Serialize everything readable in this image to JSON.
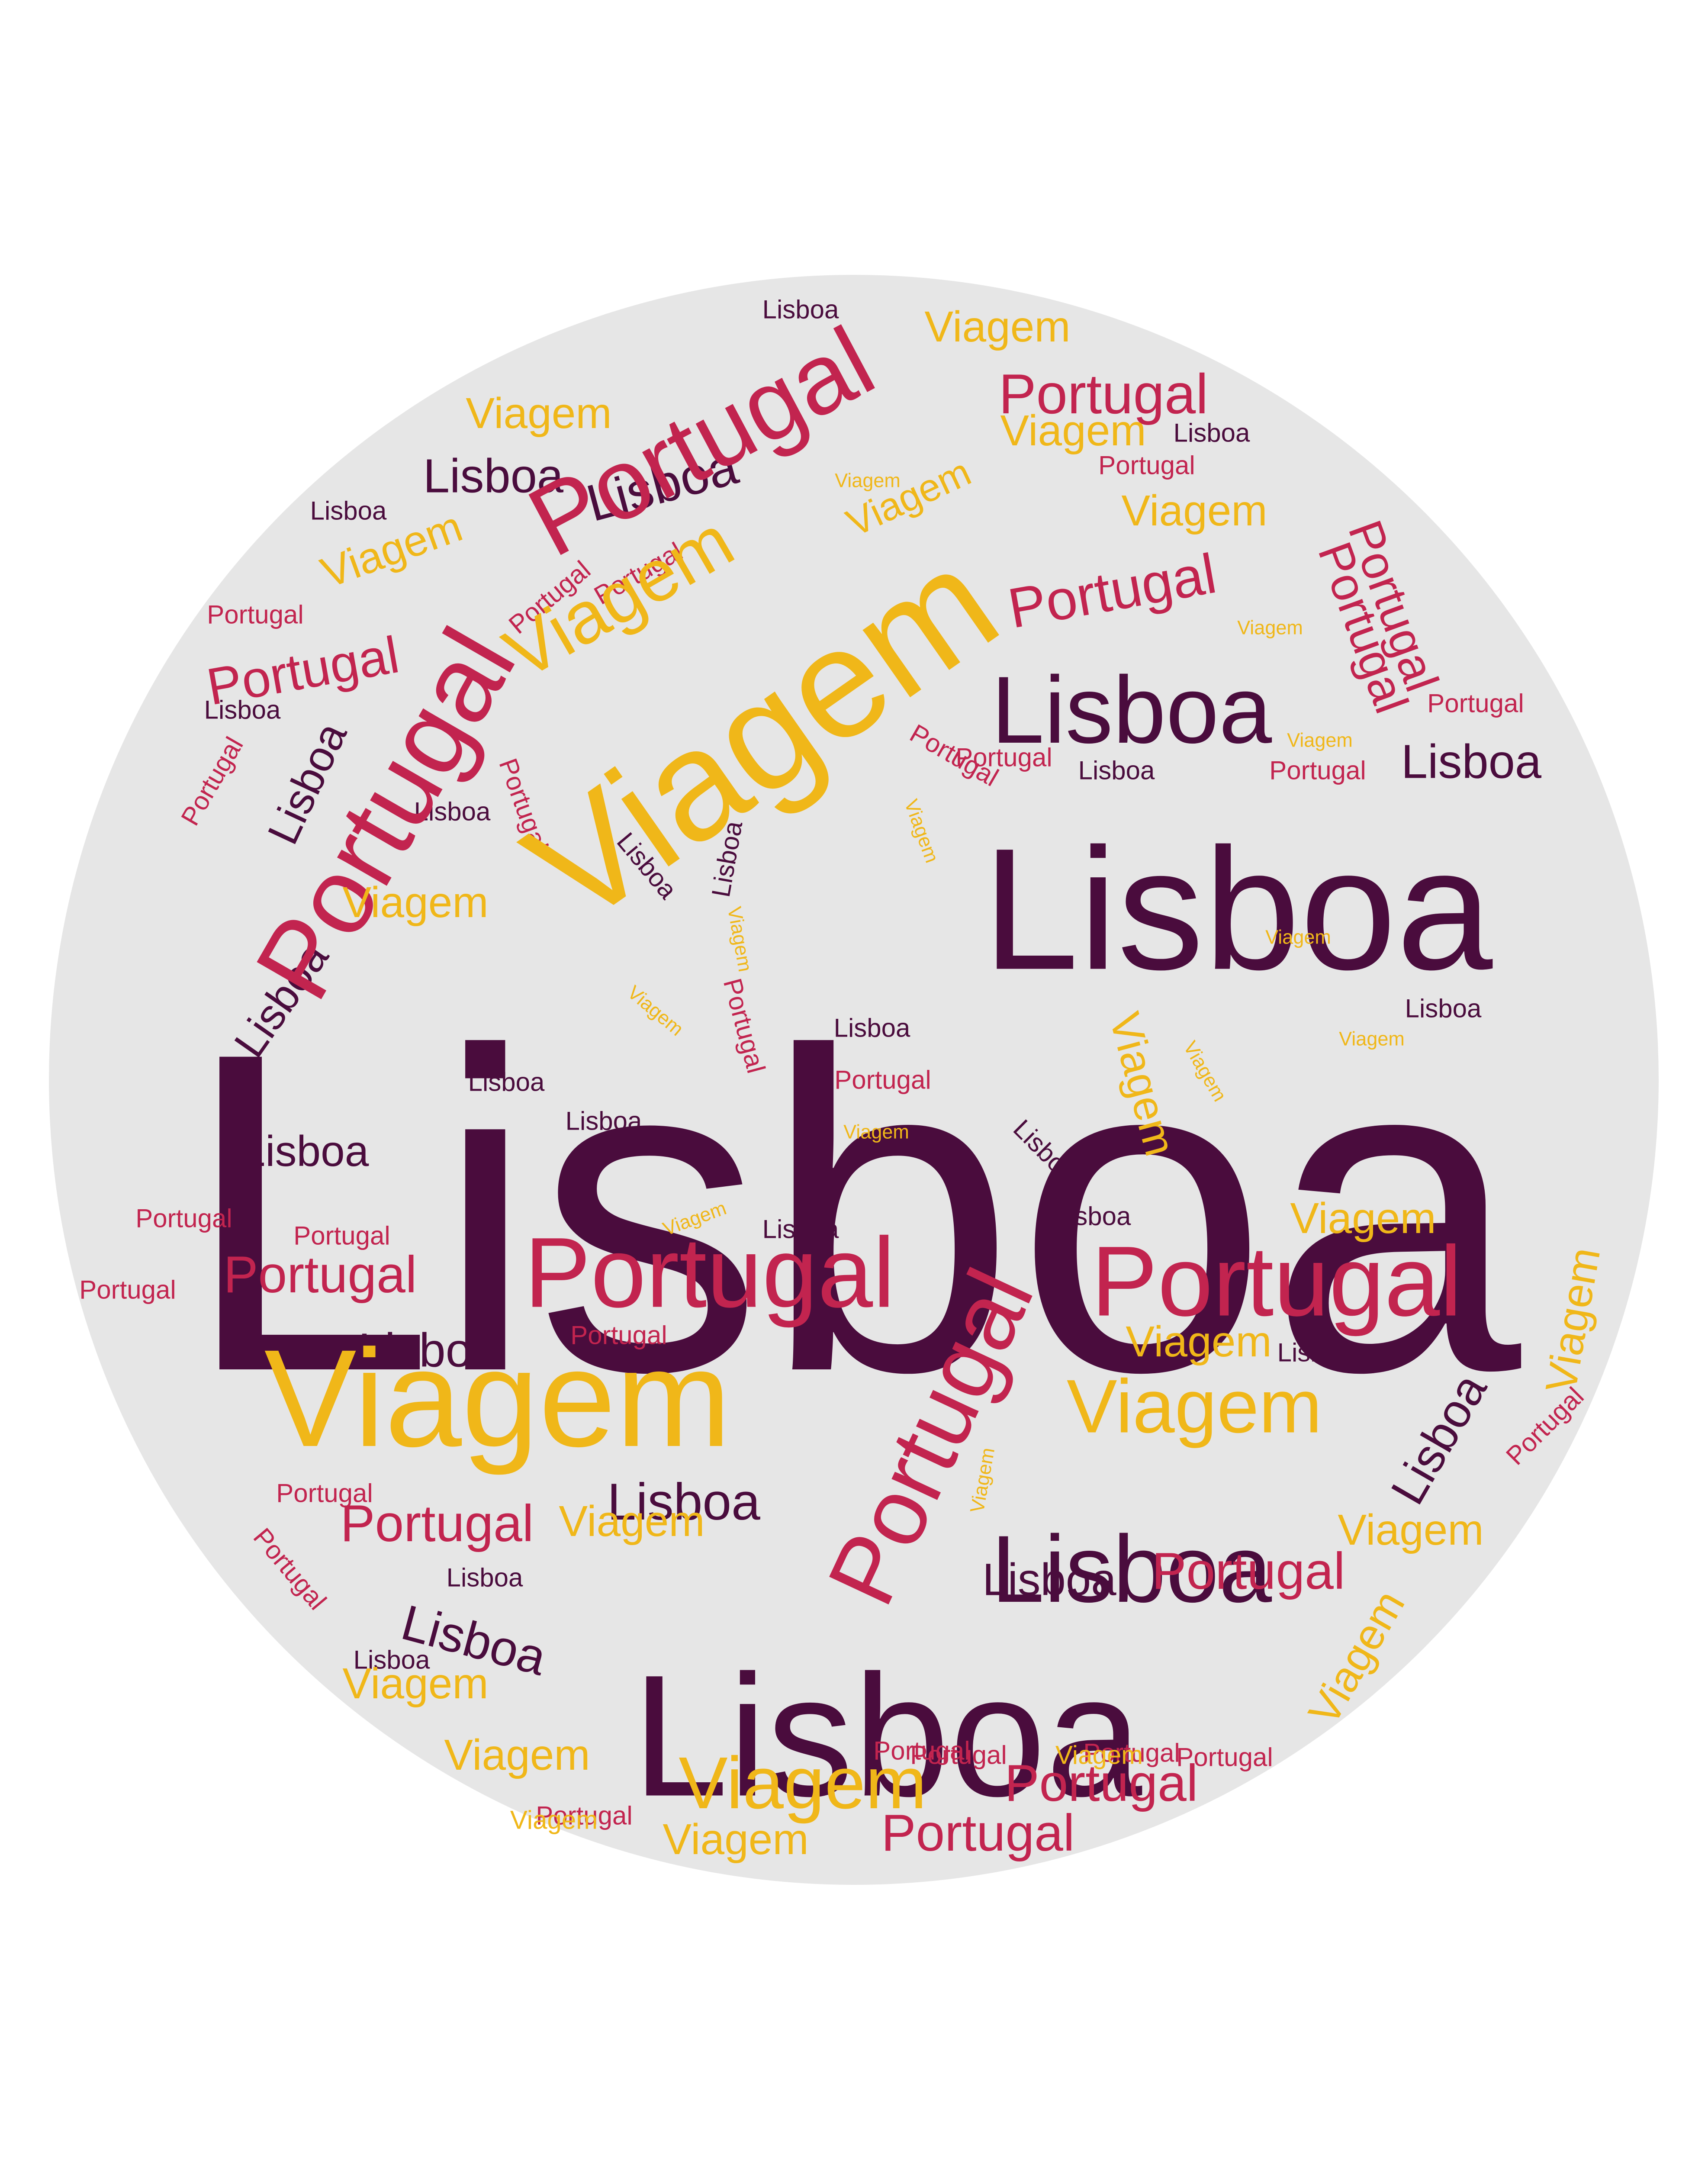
{
  "colors": {
    "background": "#ffffff",
    "circle": "#e6e6e6",
    "lisboa": "#4a0c3d",
    "portugal": "#c2244f",
    "viagem": "#f0b719"
  },
  "words": [
    {
      "text": "Lisboa",
      "color": "lisboa"
    },
    {
      "text": "Lisboa",
      "color": "lisboa"
    },
    {
      "text": "Lisboa",
      "color": "lisboa"
    },
    {
      "text": "Lisboa",
      "color": "lisboa"
    },
    {
      "text": "Lisboa",
      "color": "lisboa"
    },
    {
      "text": "Lisboa",
      "color": "lisboa"
    },
    {
      "text": "Lisboa",
      "color": "lisboa"
    },
    {
      "text": "Lisboa",
      "color": "lisboa"
    },
    {
      "text": "Lisboa",
      "color": "lisboa"
    },
    {
      "text": "Lisboa",
      "color": "lisboa"
    },
    {
      "text": "Lisboa",
      "color": "lisboa"
    },
    {
      "text": "Lisboa",
      "color": "lisboa"
    },
    {
      "text": "Lisboa",
      "color": "lisboa"
    },
    {
      "text": "Lisboa",
      "color": "lisboa"
    },
    {
      "text": "Lisboa",
      "color": "lisboa"
    },
    {
      "text": "Lisboa",
      "color": "lisboa"
    },
    {
      "text": "Lisboa",
      "color": "lisboa"
    },
    {
      "text": "Lisboa",
      "color": "lisboa"
    },
    {
      "text": "Lisboa",
      "color": "lisboa"
    },
    {
      "text": "Lisboa",
      "color": "lisboa"
    },
    {
      "text": "Lisboa",
      "color": "lisboa"
    },
    {
      "text": "Lisboa",
      "color": "lisboa"
    },
    {
      "text": "Lisboa",
      "color": "lisboa"
    },
    {
      "text": "Lisboa",
      "color": "lisboa"
    },
    {
      "text": "Lisboa",
      "color": "lisboa"
    },
    {
      "text": "Lisboa",
      "color": "lisboa"
    },
    {
      "text": "Lisboa",
      "color": "lisboa"
    },
    {
      "text": "Lisboa",
      "color": "lisboa"
    },
    {
      "text": "Lisboa",
      "color": "lisboa"
    },
    {
      "text": "Lisboa",
      "color": "lisboa"
    },
    {
      "text": "Lisboa",
      "color": "lisboa"
    },
    {
      "text": "Lisboa",
      "color": "lisboa"
    },
    {
      "text": "Lisboa",
      "color": "lisboa"
    },
    {
      "text": "Lisboa",
      "color": "lisboa"
    },
    {
      "text": "Portugal",
      "color": "portugal"
    },
    {
      "text": "Portugal",
      "color": "portugal"
    },
    {
      "text": "Portugal",
      "color": "portugal"
    },
    {
      "text": "Portugal",
      "color": "portugal"
    },
    {
      "text": "Portugal",
      "color": "portugal"
    },
    {
      "text": "Portugal",
      "color": "portugal"
    },
    {
      "text": "Portugal",
      "color": "portugal"
    },
    {
      "text": "Portugal",
      "color": "portugal"
    },
    {
      "text": "Portugal",
      "color": "portugal"
    },
    {
      "text": "Portugal",
      "color": "portugal"
    },
    {
      "text": "Portugal",
      "color": "portugal"
    },
    {
      "text": "Portugal",
      "color": "portugal"
    },
    {
      "text": "Portugal",
      "color": "portugal"
    },
    {
      "text": "Portugal",
      "color": "portugal"
    },
    {
      "text": "Portugal",
      "color": "portugal"
    },
    {
      "text": "Portugal",
      "color": "portugal"
    },
    {
      "text": "Portugal",
      "color": "portugal"
    },
    {
      "text": "Portugal",
      "color": "portugal"
    },
    {
      "text": "Portugal",
      "color": "portugal"
    },
    {
      "text": "Portugal",
      "color": "portugal"
    },
    {
      "text": "Portugal",
      "color": "portugal"
    },
    {
      "text": "Portugal",
      "color": "portugal"
    },
    {
      "text": "Portugal",
      "color": "portugal"
    },
    {
      "text": "Portugal",
      "color": "portugal"
    },
    {
      "text": "Portugal",
      "color": "portugal"
    },
    {
      "text": "Portugal",
      "color": "portugal"
    },
    {
      "text": "Portugal",
      "color": "portugal"
    },
    {
      "text": "Portugal",
      "color": "portugal"
    },
    {
      "text": "Portugal",
      "color": "portugal"
    },
    {
      "text": "Portugal",
      "color": "portugal"
    },
    {
      "text": "Portugal",
      "color": "portugal"
    },
    {
      "text": "Portugal",
      "color": "portugal"
    },
    {
      "text": "Portugal",
      "color": "portugal"
    },
    {
      "text": "Portugal",
      "color": "portugal"
    },
    {
      "text": "Portugal",
      "color": "portugal"
    },
    {
      "text": "Portugal",
      "color": "portugal"
    },
    {
      "text": "Portugal",
      "color": "portugal"
    },
    {
      "text": "Portugal",
      "color": "portugal"
    },
    {
      "text": "Portugal",
      "color": "portugal"
    },
    {
      "text": "Viagem",
      "color": "viagem"
    },
    {
      "text": "Viagem",
      "color": "viagem"
    },
    {
      "text": "Viagem",
      "color": "viagem"
    },
    {
      "text": "Viagem",
      "color": "viagem"
    },
    {
      "text": "Viagem",
      "color": "viagem"
    },
    {
      "text": "Viagem",
      "color": "viagem"
    },
    {
      "text": "Viagem",
      "color": "viagem"
    },
    {
      "text": "Viagem",
      "color": "viagem"
    },
    {
      "text": "Viagem",
      "color": "viagem"
    },
    {
      "text": "Viagem",
      "color": "viagem"
    },
    {
      "text": "Viagem",
      "color": "viagem"
    },
    {
      "text": "Viagem",
      "color": "viagem"
    },
    {
      "text": "Viagem",
      "color": "viagem"
    },
    {
      "text": "Viagem",
      "color": "viagem"
    },
    {
      "text": "Viagem",
      "color": "viagem"
    },
    {
      "text": "Viagem",
      "color": "viagem"
    },
    {
      "text": "Viagem",
      "color": "viagem"
    },
    {
      "text": "Viagem",
      "color": "viagem"
    },
    {
      "text": "Viagem",
      "color": "viagem"
    },
    {
      "text": "Viagem",
      "color": "viagem"
    },
    {
      "text": "Viagem",
      "color": "viagem"
    },
    {
      "text": "Viagem",
      "color": "viagem"
    },
    {
      "text": "Viagem",
      "color": "viagem"
    },
    {
      "text": "Viagem",
      "color": "viagem"
    },
    {
      "text": "Viagem",
      "color": "viagem"
    },
    {
      "text": "Viagem",
      "color": "viagem"
    },
    {
      "text": "Viagem",
      "color": "viagem"
    },
    {
      "text": "Viagem",
      "color": "viagem"
    },
    {
      "text": "Viagem",
      "color": "viagem"
    },
    {
      "text": "Viagem",
      "color": "viagem"
    },
    {
      "text": "Viagem",
      "color": "viagem"
    },
    {
      "text": "Viagem",
      "color": "viagem"
    },
    {
      "text": "Viagem",
      "color": "viagem"
    },
    {
      "text": "Viagem",
      "color": "viagem"
    },
    {
      "text": "Viagem",
      "color": "viagem"
    },
    {
      "text": "Viagem",
      "color": "viagem"
    }
  ]
}
